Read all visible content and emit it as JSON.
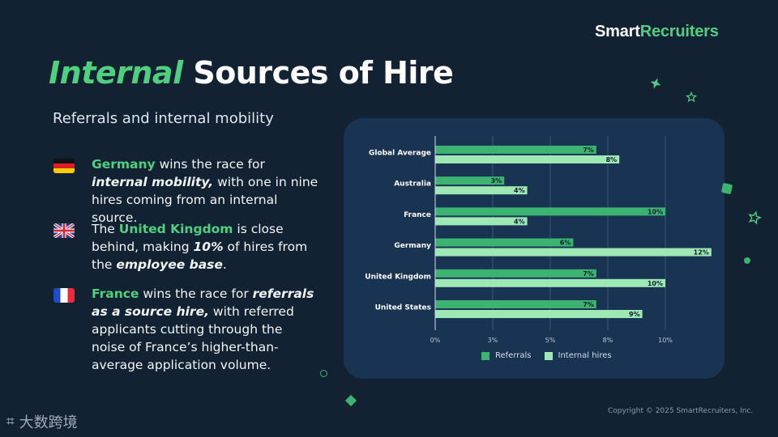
{
  "brand": {
    "part1": "Smart",
    "part2": "Recruiters"
  },
  "title": {
    "accent": "Internal",
    "rest": " Sources of Hire"
  },
  "subtitle": "Referrals and internal mobility",
  "points": [
    {
      "flag": "germany-flag",
      "hl": "Germany",
      "t1": " wins the race for ",
      "em1": "internal mobility,",
      "t2": " with one in nine hires coming from an internal source."
    },
    {
      "flag": "uk-flag",
      "t0": "The ",
      "hl": "United Kingdom",
      "t1": " is close behind, making ",
      "em1": "10%",
      "t2": " of hires from the ",
      "em2": "employee base",
      "t3": "."
    },
    {
      "flag": "france-flag",
      "hl": "France",
      "t1": " wins the race for ",
      "em1": "referrals as a source hire,",
      "t2": " with referred applicants cutting through the noise of France’s higher-than-average application volume."
    }
  ],
  "copyright": "Copyright © 2025 SmartRecruiters, Inc.",
  "watermark": "大数跨境",
  "colors": {
    "accent": "#4fd07f",
    "referrals": "#3cb371",
    "internal": "#9de8b4",
    "panel": "#193352",
    "background": "#132233"
  },
  "chart_data": {
    "type": "bar",
    "orientation": "horizontal",
    "categories": [
      "Global Average",
      "Australia",
      "France",
      "Germany",
      "United Kingdom",
      "United States"
    ],
    "series": [
      {
        "name": "Referrals",
        "values": [
          7,
          3,
          10,
          6,
          7,
          7
        ],
        "labels": [
          "7%",
          "3%",
          "10%",
          "6%",
          "7%",
          "7%"
        ]
      },
      {
        "name": "Internal hires",
        "values": [
          8,
          4,
          4,
          12,
          10,
          9
        ],
        "labels": [
          "8%",
          "4%",
          "4%",
          "12%",
          "10%",
          "9%"
        ]
      }
    ],
    "xlim": [
      0,
      12
    ],
    "xticks": [
      0,
      2.5,
      5,
      7.5,
      10
    ],
    "xtick_labels": [
      "0%",
      "3%",
      "5%",
      "8%",
      "10%"
    ],
    "grid": true,
    "legend": "bottom"
  }
}
